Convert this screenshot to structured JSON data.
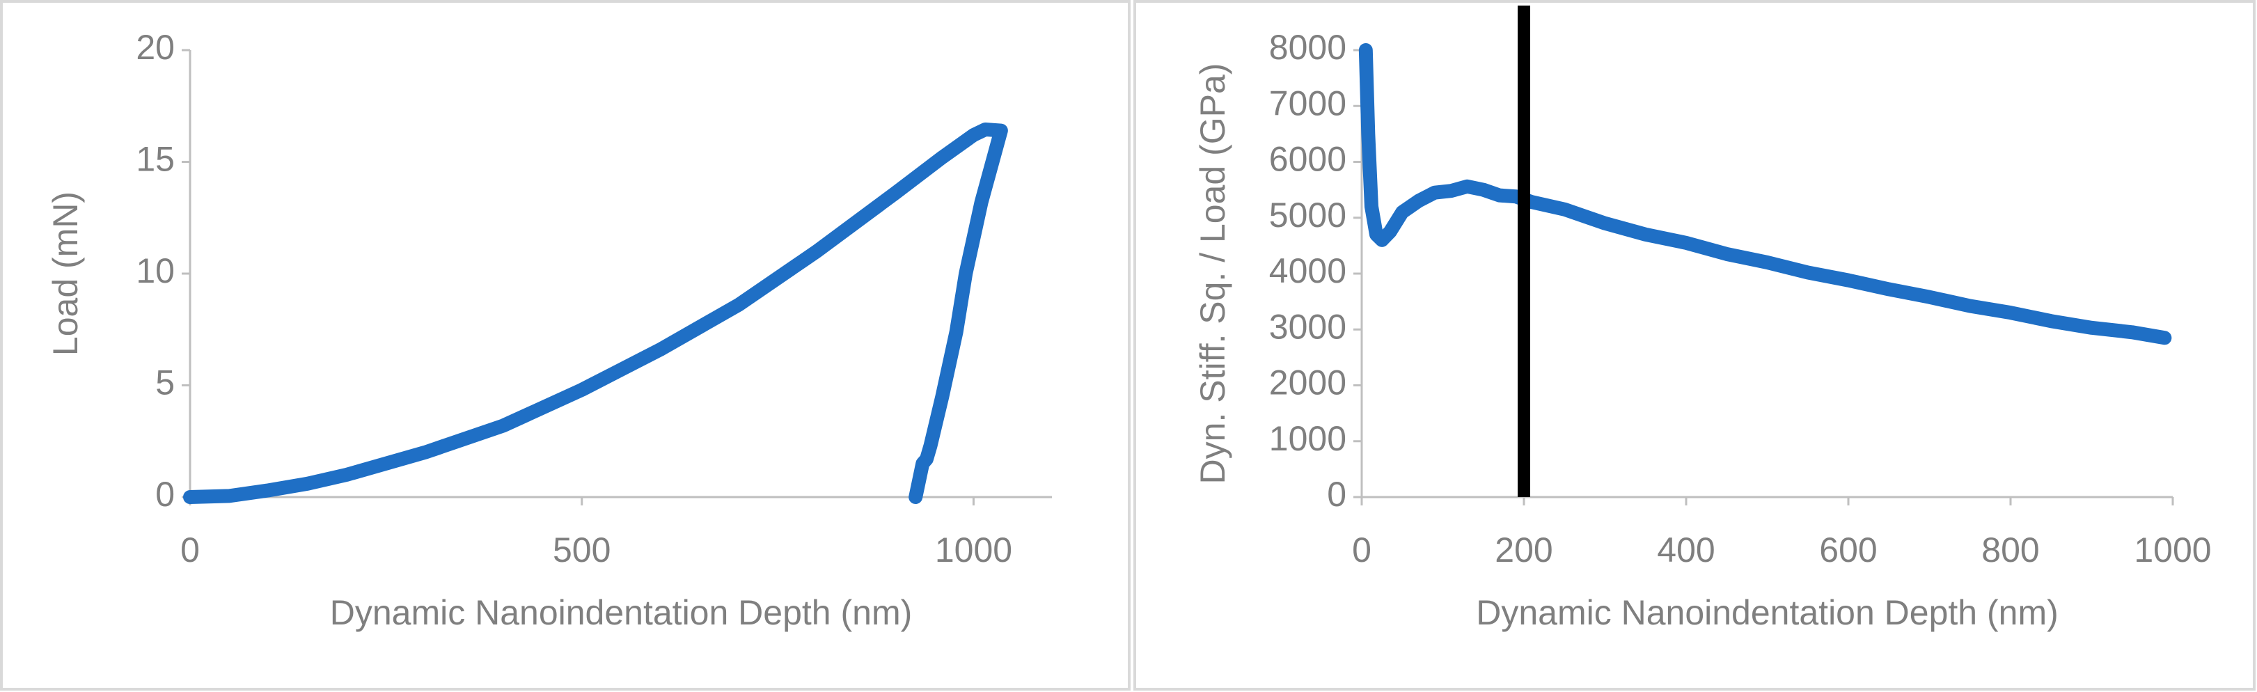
{
  "chart_data": [
    {
      "type": "line",
      "x_label": "Dynamic Nanoindentation Depth (nm)",
      "y_label": "Load (mN)",
      "xlim": [
        0,
        1100
      ],
      "xticks": [
        0,
        500,
        1000
      ],
      "ylim": [
        0,
        20
      ],
      "yticks": [
        0,
        5,
        10,
        15,
        20
      ],
      "series": [
        {
          "color": "#1f6fc5",
          "x": [
            0,
            50,
            100,
            150,
            200,
            300,
            400,
            500,
            600,
            700,
            800,
            900,
            960,
            1000,
            1015,
            1035,
            1010,
            990,
            978,
            960,
            945,
            940,
            935,
            926
          ],
          "values": [
            0,
            0.05,
            0.3,
            0.6,
            1.0,
            2.0,
            3.2,
            4.8,
            6.6,
            8.6,
            11.0,
            13.6,
            15.2,
            16.2,
            16.45,
            16.4,
            13.2,
            10.0,
            7.4,
            4.5,
            2.3,
            1.7,
            1.5,
            0
          ]
        }
      ]
    },
    {
      "type": "line",
      "x_label": "Dynamic Nanoindentation Depth (nm)",
      "y_label": "Dyn. Stiff. Sq. / Load (GPa)",
      "xlim": [
        0,
        1000
      ],
      "xticks": [
        0,
        200,
        400,
        600,
        800,
        1000
      ],
      "ylim": [
        0,
        8000
      ],
      "yticks": [
        0,
        1000,
        2000,
        3000,
        4000,
        5000,
        6000,
        7000,
        8000
      ],
      "vline": {
        "x": 200,
        "color": "#000000"
      },
      "series": [
        {
          "color": "#1f6fc5",
          "x": [
            5,
            8,
            12,
            18,
            25,
            35,
            50,
            70,
            90,
            110,
            130,
            150,
            170,
            190,
            210,
            250,
            300,
            350,
            400,
            450,
            500,
            550,
            600,
            650,
            700,
            750,
            800,
            850,
            900,
            950,
            990
          ],
          "values": [
            8000,
            6500,
            5200,
            4700,
            4600,
            4750,
            5100,
            5300,
            5450,
            5480,
            5560,
            5500,
            5400,
            5380,
            5280,
            5150,
            4900,
            4700,
            4550,
            4350,
            4200,
            4020,
            3880,
            3720,
            3580,
            3420,
            3300,
            3150,
            3030,
            2950,
            2850
          ]
        }
      ]
    }
  ]
}
